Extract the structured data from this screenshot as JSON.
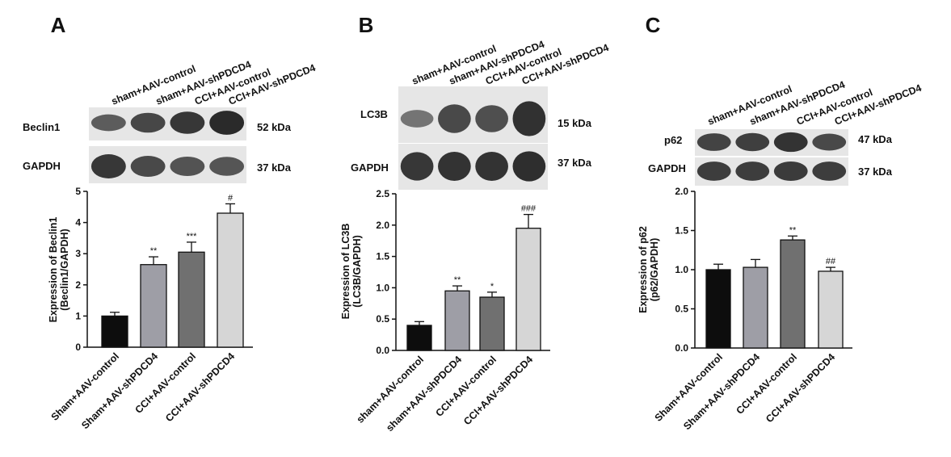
{
  "colors": {
    "bar_fills": [
      "#0d0d0d",
      "#9e9ea6",
      "#707070",
      "#d6d6d6"
    ],
    "blot_background": "#e6e6e6",
    "band_color": "#1a1a1a"
  },
  "panels": [
    {
      "letter": "A",
      "lane_labels": [
        "sham+AAV-control",
        "sham+AAV-shPDCD4",
        "CCI+AAV-control",
        "CCI+AAV-shPDCD4"
      ],
      "blots": [
        {
          "protein": "Beclin1",
          "kda": "52 kDa",
          "intensities": [
            0.55,
            0.72,
            0.85,
            0.95
          ]
        },
        {
          "protein": "GAPDH",
          "kda": "37 kDa",
          "intensities": [
            0.85,
            0.7,
            0.62,
            0.6
          ]
        }
      ]
    },
    {
      "letter": "B",
      "lane_labels": [
        "sham+AAV-control",
        "sham+AAV-shPDCD4",
        "CCI+AAV-control",
        "CCI+AAV-shPDCD4"
      ],
      "blots": [
        {
          "protein": "LC3B",
          "kda": "15 kDa",
          "intensities": [
            0.35,
            0.7,
            0.65,
            0.9
          ]
        },
        {
          "protein": "GAPDH",
          "kda": "37 kDa",
          "intensities": [
            0.85,
            0.88,
            0.88,
            0.92
          ]
        }
      ]
    },
    {
      "letter": "C",
      "lane_labels": [
        "sham+AAV-control",
        "sham+AAV-shPDCD4",
        "CCI+AAV-control",
        "CCI+AAV-shPDCD4"
      ],
      "blots": [
        {
          "protein": "p62",
          "kda": "47 kDa",
          "intensities": [
            0.75,
            0.78,
            0.88,
            0.7
          ]
        },
        {
          "protein": "GAPDH",
          "kda": "37 kDa",
          "intensities": [
            0.8,
            0.8,
            0.82,
            0.8
          ]
        }
      ]
    }
  ],
  "chart_data": [
    {
      "type": "bar",
      "categories": [
        "Sham+AAV-control",
        "Sham+AAV-shPDCD4",
        "CCI+AAV-control",
        "CCI+AAV-shPDCD4"
      ],
      "values": [
        1.0,
        2.65,
        3.05,
        4.3
      ],
      "errors": [
        0.12,
        0.25,
        0.32,
        0.3
      ],
      "significance": [
        "",
        "**",
        "***",
        "#"
      ],
      "ylabel": [
        "Expression of Beclin1",
        "(Beclin1/GAPDH)"
      ],
      "ylim": [
        0,
        5
      ],
      "yticks": [
        0,
        1,
        2,
        3,
        4,
        5
      ],
      "ytick_labels": [
        "0",
        "1",
        "2",
        "3",
        "4",
        "5"
      ],
      "grid": false
    },
    {
      "type": "bar",
      "categories": [
        "sham+AAV-control",
        "sham+AAV-shPDCD4",
        "CCI+AAV-control",
        "CCI+AAV-shPDCD4"
      ],
      "values": [
        0.4,
        0.95,
        0.85,
        1.95
      ],
      "errors": [
        0.06,
        0.08,
        0.08,
        0.22
      ],
      "significance": [
        "",
        "**",
        "*",
        "###"
      ],
      "ylabel": [
        "Expression of LC3B",
        "(LC3B/GAPDH)"
      ],
      "ylim": [
        0,
        2.5
      ],
      "yticks": [
        0,
        0.5,
        1.0,
        1.5,
        2.0,
        2.5
      ],
      "ytick_labels": [
        "0.0",
        "0.5",
        "1.0",
        "1.5",
        "2.0",
        "2.5"
      ],
      "grid": false
    },
    {
      "type": "bar",
      "categories": [
        "Sham+AAV-control",
        "Sham+AAV-shPDCD4",
        "CCI+AAV-control",
        "CCI+AAV-shPDCD4"
      ],
      "values": [
        1.0,
        1.03,
        1.38,
        0.98
      ],
      "errors": [
        0.07,
        0.1,
        0.05,
        0.05
      ],
      "significance": [
        "",
        "",
        "**",
        "##"
      ],
      "ylabel": [
        "Expression of p62",
        "(p62/GAPDH)"
      ],
      "ylim": [
        0,
        2.0
      ],
      "yticks": [
        0,
        0.5,
        1.0,
        1.5,
        2.0
      ],
      "ytick_labels": [
        "0.0",
        "0.5",
        "1.0",
        "1.5",
        "2.0"
      ],
      "grid": false
    }
  ]
}
